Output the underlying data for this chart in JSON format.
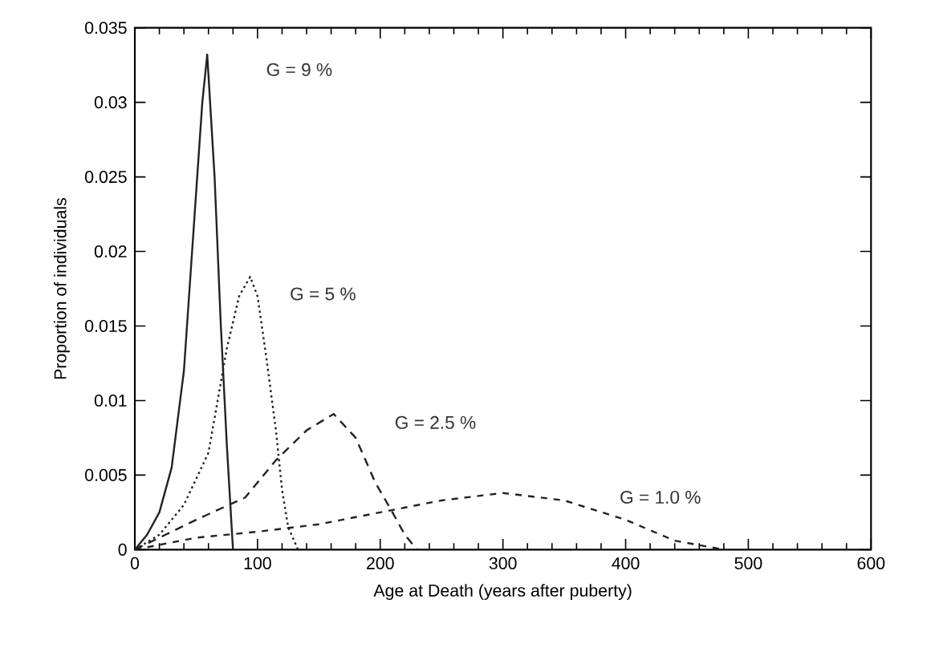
{
  "chart_data": {
    "type": "line",
    "xlabel": "Age at Death (years after puberty)",
    "ylabel": "Proportion of individuals",
    "xlim": [
      0,
      600
    ],
    "ylim": [
      0,
      0.035
    ],
    "xticks": [
      0,
      100,
      200,
      300,
      400,
      500,
      600
    ],
    "yticks": [
      0,
      0.005,
      0.01,
      0.015,
      0.02,
      0.025,
      0.03,
      0.035
    ],
    "grid": false,
    "marker": "none",
    "series": [
      {
        "color": "#222222",
        "line_style": "solid",
        "x": [
          0,
          10,
          20,
          30,
          40,
          50,
          55,
          59,
          65,
          70,
          75,
          80
        ],
        "values": [
          0,
          0.001,
          0.0025,
          0.0055,
          0.012,
          0.024,
          0.03,
          0.0332,
          0.025,
          0.0152,
          0.007,
          0
        ]
      },
      {
        "color": "#222222",
        "line_style": "dotted",
        "x": [
          0,
          20,
          40,
          60,
          75,
          85,
          94,
          100,
          107,
          115,
          120,
          125,
          133
        ],
        "values": [
          0,
          0.001,
          0.003,
          0.0065,
          0.0135,
          0.017,
          0.0183,
          0.017,
          0.013,
          0.008,
          0.004,
          0.0015,
          0
        ]
      },
      {
        "color": "#222222",
        "line_style": "dashed",
        "x": [
          0,
          25,
          50,
          90,
          115,
          140,
          162,
          180,
          196,
          210,
          220,
          230
        ],
        "values": [
          0,
          0.001,
          0.002,
          0.0035,
          0.006,
          0.008,
          0.0091,
          0.0075,
          0.0045,
          0.0025,
          0.001,
          0
        ]
      },
      {
        "color": "#222222",
        "line_style": "dashed",
        "x": [
          0,
          50,
          100,
          150,
          200,
          250,
          300,
          350,
          400,
          440,
          480
        ],
        "values": [
          0,
          0.0008,
          0.0012,
          0.0017,
          0.0025,
          0.0033,
          0.0038,
          0.0033,
          0.002,
          0.0006,
          0
        ]
      }
    ],
    "annotations": [
      "G = 9 %",
      "G = 5 %",
      "G = 2.5 %",
      "G = 1.0 %"
    ]
  }
}
